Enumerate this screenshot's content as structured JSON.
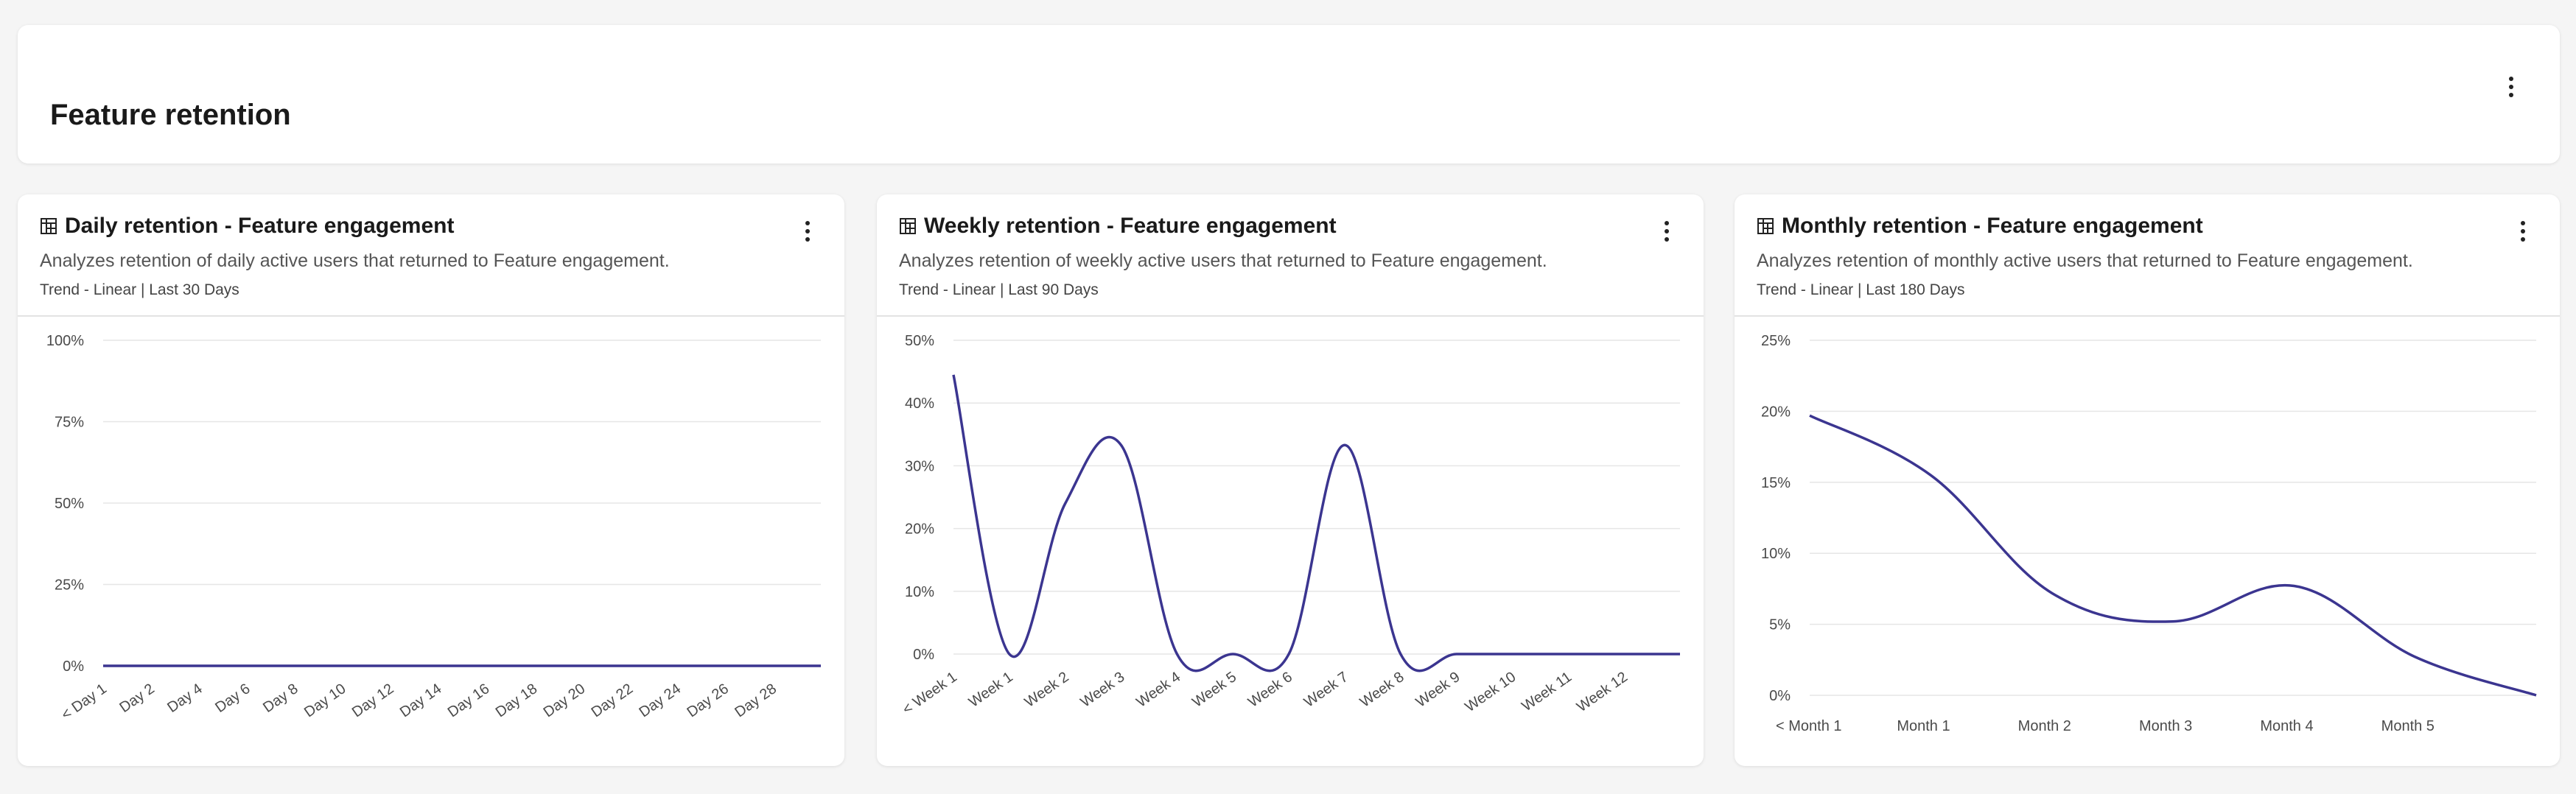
{
  "page": {
    "title": "Feature retention"
  },
  "cards": [
    {
      "title": "Daily retention - Feature engagement",
      "description": "Analyzes retention of daily active users that returned to Feature engagement.",
      "meta": "Trend - Linear | Last 30 Days"
    },
    {
      "title": "Weekly retention - Feature engagement",
      "description": "Analyzes retention of weekly active users that returned to Feature engagement.",
      "meta": "Trend - Linear | Last 90 Days"
    },
    {
      "title": "Monthly retention - Feature engagement",
      "description": "Analyzes retention of monthly active users that returned to Feature engagement.",
      "meta": "Trend - Linear | Last 180 Days"
    }
  ],
  "icons": {
    "chart_type": "table-chart-icon",
    "menu": "more-vertical-icon"
  },
  "colors": {
    "line": "#3b3590",
    "grid": "#e6e6e6"
  },
  "chart_data": [
    {
      "type": "line",
      "title": "Daily retention - Feature engagement",
      "ylim": [
        0,
        100
      ],
      "yticks": [
        "100%",
        "75%",
        "50%",
        "25%",
        "0%"
      ],
      "yticks_values": [
        100,
        75,
        50,
        25,
        0
      ],
      "categories": [
        "< Day 1",
        "Day 2",
        "Day 4",
        "Day 6",
        "Day 8",
        "Day 10",
        "Day 12",
        "Day 14",
        "Day 16",
        "Day 18",
        "Day 20",
        "Day 22",
        "Day 24",
        "Day 26",
        "Day 28"
      ],
      "x": [
        0,
        1,
        2,
        3,
        4,
        5,
        6,
        7,
        8,
        9,
        10,
        11,
        12,
        13,
        14,
        15
      ],
      "values": [
        0,
        0,
        0,
        0,
        0,
        0,
        0,
        0,
        0,
        0,
        0,
        0,
        0,
        0,
        0,
        0
      ],
      "rotated_ticks": true,
      "grid": true
    },
    {
      "type": "line",
      "title": "Weekly retention - Feature engagement",
      "ylim": [
        0,
        50
      ],
      "yticks": [
        "50%",
        "40%",
        "30%",
        "20%",
        "10%",
        "0%"
      ],
      "yticks_values": [
        50,
        40,
        30,
        20,
        10,
        0
      ],
      "categories": [
        "< Week 1",
        "Week 1",
        "Week 2",
        "Week 3",
        "Week 4",
        "Week 5",
        "Week 6",
        "Week 7",
        "Week 8",
        "Week 9",
        "Week 10",
        "Week 11",
        "Week 12"
      ],
      "x": [
        0,
        1,
        2,
        3,
        4,
        5,
        6,
        7,
        8,
        9,
        10,
        11,
        12,
        13
      ],
      "values": [
        44.5,
        0,
        24,
        33.3,
        0,
        0,
        0,
        33.3,
        0,
        0,
        0,
        0,
        0,
        0
      ],
      "rotated_ticks": true,
      "grid": true
    },
    {
      "type": "line",
      "title": "Monthly retention - Feature engagement",
      "ylim": [
        0,
        25
      ],
      "yticks": [
        "25%",
        "20%",
        "15%",
        "10%",
        "5%",
        "0%"
      ],
      "yticks_values": [
        25,
        20,
        15,
        10,
        5,
        0
      ],
      "categories": [
        "< Month 1",
        "Month 1",
        "Month 2",
        "Month 3",
        "Month 4",
        "Month 5"
      ],
      "x": [
        0,
        1,
        2,
        3,
        4,
        5,
        6
      ],
      "values": [
        19.7,
        15.5,
        7.2,
        5.2,
        7.7,
        2.7,
        0
      ],
      "rotated_ticks": false,
      "grid": true
    }
  ]
}
